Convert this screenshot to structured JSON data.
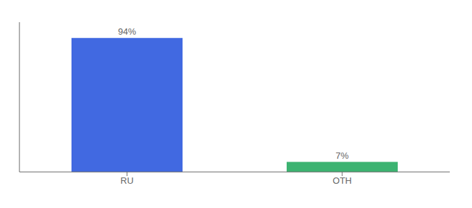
{
  "chart_data": {
    "type": "bar",
    "categories": [
      "RU",
      "OTH"
    ],
    "values": [
      94,
      7
    ],
    "value_labels": [
      "94%",
      "7%"
    ],
    "colors": [
      "#4169E1",
      "#3CB371"
    ],
    "ylim": [
      0,
      105
    ],
    "data_labels": true,
    "tick_labels": "x",
    "grid": false
  }
}
